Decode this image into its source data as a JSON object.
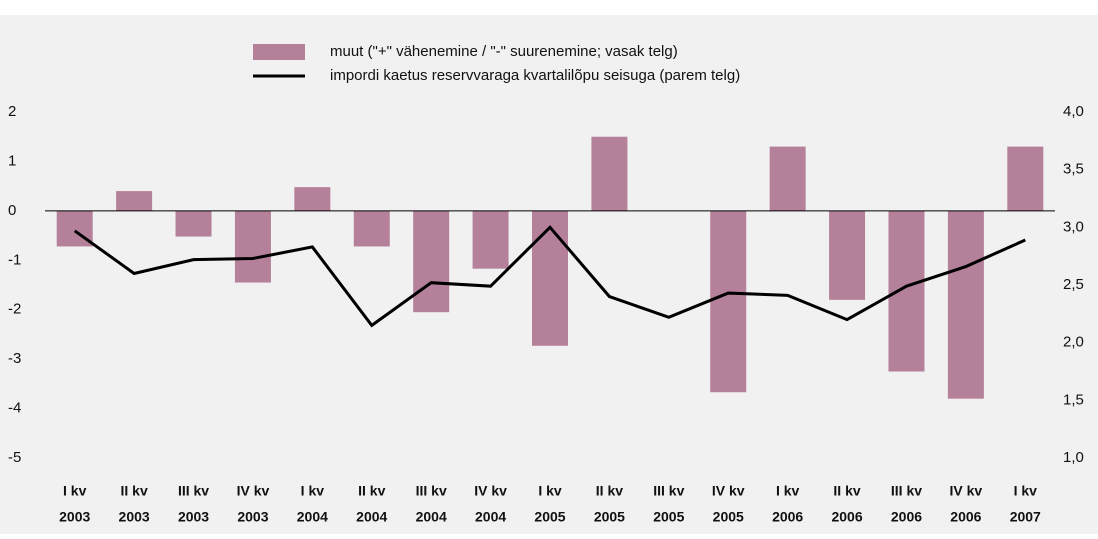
{
  "chart_data": {
    "type": "bar-line",
    "categories": [
      [
        "I kv",
        "2003"
      ],
      [
        "II kv",
        "2003"
      ],
      [
        "III kv",
        "2003"
      ],
      [
        "IV kv",
        "2003"
      ],
      [
        "I kv",
        "2004"
      ],
      [
        "II kv",
        "2004"
      ],
      [
        "III kv",
        "2004"
      ],
      [
        "IV kv",
        "2004"
      ],
      [
        "I kv",
        "2005"
      ],
      [
        "II kv",
        "2005"
      ],
      [
        "III kv",
        "2005"
      ],
      [
        "IV kv",
        "2005"
      ],
      [
        "I kv",
        "2006"
      ],
      [
        "II kv",
        "2006"
      ],
      [
        "III kv",
        "2006"
      ],
      [
        "IV kv",
        "2006"
      ],
      [
        "I kv",
        "2007"
      ]
    ],
    "series": [
      {
        "name": "muut (\"+\" vähenemine / \"-\" suurenemine; vasak telg)",
        "color": "#b5819a",
        "type": "bar",
        "values": [
          -0.72,
          0.4,
          -0.52,
          -1.45,
          0.48,
          -0.72,
          -2.05,
          -1.17,
          -2.73,
          1.5,
          0,
          -3.67,
          1.3,
          -1.8,
          -3.25,
          -3.8,
          1.3
        ]
      },
      {
        "name": "impordi kaetus reservvaraga kvartalilõpu seisuga (parem telg)",
        "color": "#000000",
        "type": "line",
        "axis": "y2",
        "values": [
          2.97,
          2.6,
          2.72,
          2.73,
          2.83,
          2.15,
          2.52,
          2.49,
          3.0,
          2.4,
          2.22,
          2.43,
          2.41,
          2.2,
          2.49,
          2.66,
          2.89
        ]
      }
    ],
    "ylim": [
      -5,
      2
    ],
    "yticks": [
      -5,
      -4,
      -3,
      -2,
      -1,
      0,
      1,
      2
    ],
    "y2lim": [
      1,
      4
    ],
    "y2ticks": [
      {
        "value": 1,
        "label": "1,0"
      },
      {
        "value": 1.5,
        "label": "1,5"
      },
      {
        "value": 2,
        "label": "2,0"
      },
      {
        "value": 2.5,
        "label": "2,5"
      },
      {
        "value": 3,
        "label": "3,0"
      },
      {
        "value": 3.5,
        "label": "3,5"
      },
      {
        "value": 4,
        "label": "4,0"
      }
    ],
    "legend": "top"
  }
}
